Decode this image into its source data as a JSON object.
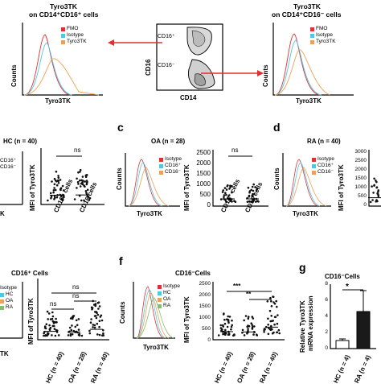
{
  "figure": {
    "colors": {
      "fmo": "#e03030",
      "isotype": "#e03030",
      "cd16pos": "#49c8e8",
      "cd16neg": "#f0a050",
      "tyro3tk": "#f0a050",
      "hc": "#49c8e8",
      "oa": "#f0a050",
      "ra": "#80c070",
      "arrow": "#e03030",
      "bar": "#1a1a1a"
    },
    "top": {
      "left_title_1": "Tyro3TK",
      "left_title_2": "on CD14⁺CD16⁺ cells",
      "right_title_1": "Tyro3TK",
      "right_title_2": "on CD14⁺CD16⁻ cells",
      "legend": [
        "FMO",
        "Isotype",
        "Tyro3TK"
      ],
      "y_label": "Counts",
      "x_label": "Tyro3TK",
      "gate_pos": "CD16⁺",
      "gate_neg": "CD16⁻",
      "gate_y": "CD16",
      "gate_x": "CD14"
    },
    "panel_b": {
      "title": "HC (n = 40)",
      "ns": "ns",
      "y_label": "MFI of Tyro3TK",
      "xtl": [
        "CD16⁺ cells",
        "CD16 cells"
      ],
      "legend_frag": [
        "Isotype",
        "CD16⁺",
        "CD16⁻"
      ]
    },
    "panel_c": {
      "letter": "c",
      "title": "OA (n = 28)",
      "ns": "ns",
      "y_label": "MFI of Tyro3TK",
      "xtl": [
        "CD16⁺ cells",
        "CD16 cells"
      ],
      "legend": [
        "Isotype",
        "CD16⁺",
        "CD16⁻"
      ],
      "yticks": [
        "2500",
        "2000",
        "1500",
        "1000",
        "500",
        "0"
      ]
    },
    "panel_d": {
      "letter": "d",
      "title": "RA (n = 40)",
      "y_label": "MFI of Tyro3TK",
      "legend": [
        "Isotype",
        "CD16⁺",
        "CD16⁻"
      ],
      "yticks": [
        "3000",
        "2500",
        "2000",
        "1500",
        "1000",
        "500",
        "0"
      ]
    },
    "panel_e": {
      "title": "CD16⁺ Cells",
      "ns": [
        "ns",
        "ns",
        "ns"
      ],
      "y_label": "MFI of Tyro3TK",
      "legend": [
        "Isotype",
        "HC",
        "OA",
        "RA"
      ],
      "xtl": [
        "HC (n = 40)",
        "OA (n = 28)",
        "RA (n = 40)"
      ]
    },
    "panel_f": {
      "letter": "f",
      "title": "CD16⁻Cells",
      "sig": [
        "***",
        "**"
      ],
      "y_label": "MFI of Tyro3TK",
      "legend": [
        "Isotype",
        "HC",
        "OA",
        "RA"
      ],
      "xtl": [
        "HC (n = 40)",
        "OA (n = 28)",
        "RA (n = 40)"
      ],
      "yticks": [
        "2500",
        "2000",
        "1500",
        "1000",
        "500",
        "0"
      ]
    },
    "panel_g": {
      "letter": "g",
      "title": "CD16⁻Cells",
      "sig": "*",
      "y_label_1": "Relative Tyro3TK",
      "y_label_2": "mRNA expression",
      "yticks": [
        "8",
        "6",
        "4",
        "2",
        "0"
      ],
      "xtl": [
        "HC (n = 4)",
        "RA (n = 4)"
      ],
      "chart_data": {
        "type": "bar",
        "categories": [
          "HC (n = 4)",
          "RA (n = 4)"
        ],
        "values": [
          1.0,
          4.6
        ],
        "errors": [
          0.2,
          2.6
        ],
        "ylim": [
          0,
          8
        ],
        "ylabel": "Relative Tyro3TK mRNA expression"
      }
    },
    "common": {
      "counts": "Counts",
      "x_tyro": "Tyro3TK"
    }
  }
}
